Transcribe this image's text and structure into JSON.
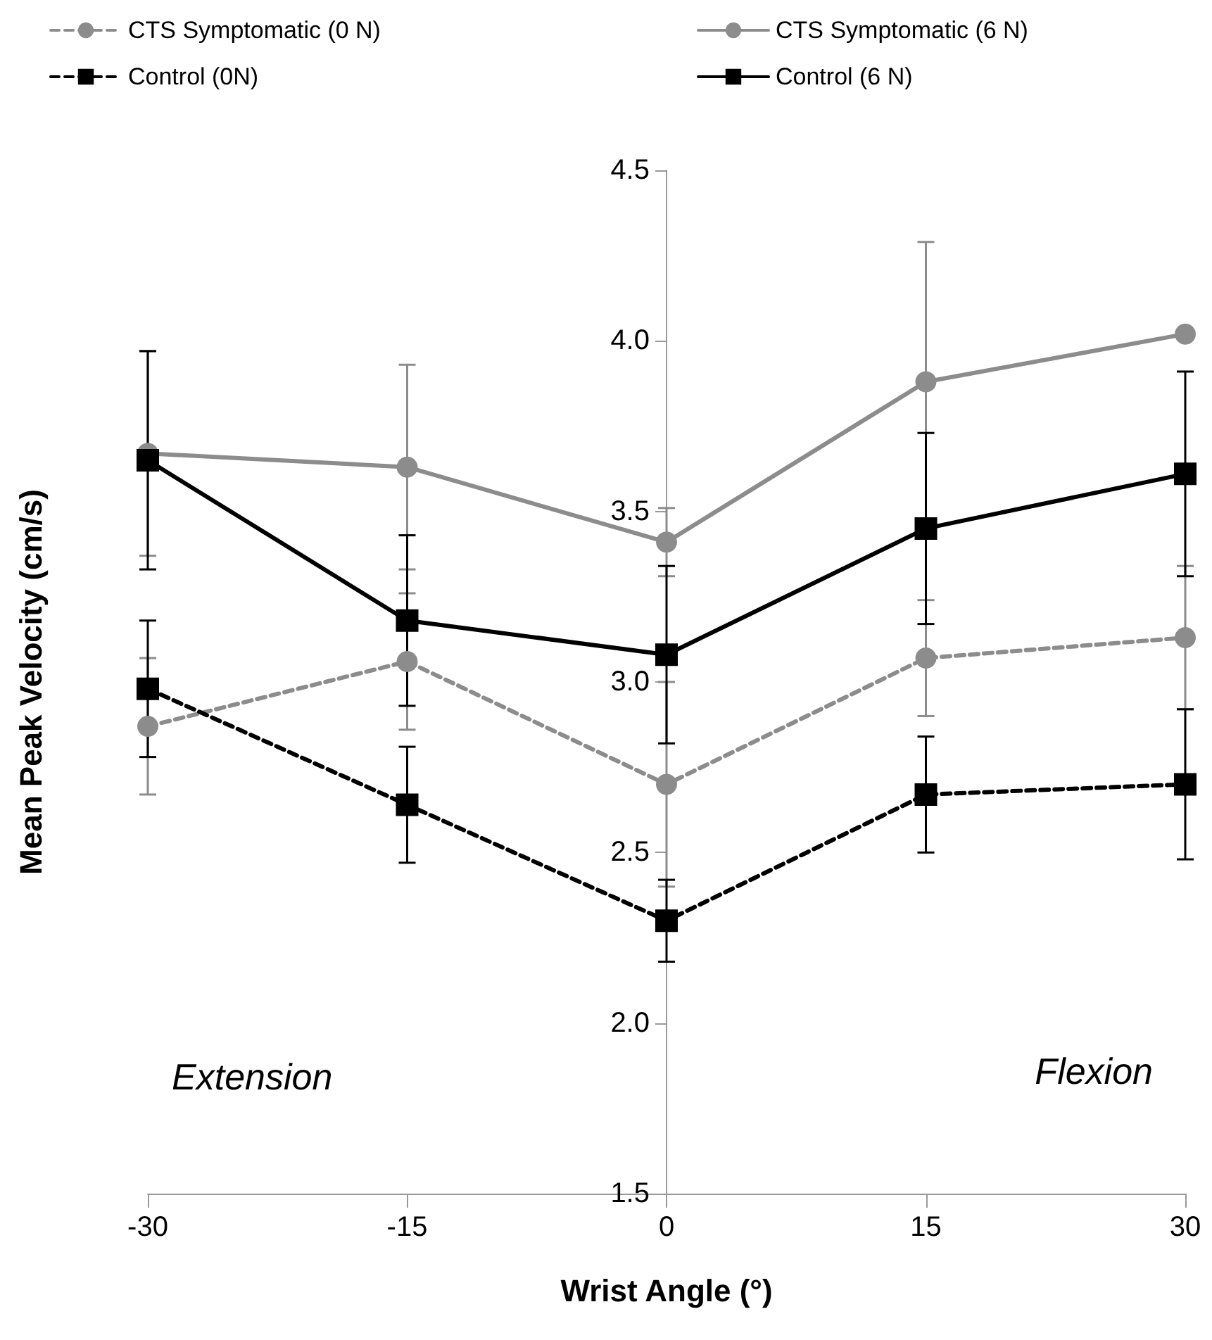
{
  "chart_data": {
    "type": "line",
    "xlabel": "Wrist Angle (°)",
    "ylabel": "Mean Peak Velocity (cm/s)",
    "x": [
      -30,
      -15,
      0,
      15,
      30
    ],
    "xlim": [
      -30,
      30
    ],
    "xticks": [
      -30,
      -15,
      0,
      15,
      30
    ],
    "ylim": [
      1.5,
      4.5
    ],
    "yticks": [
      1.5,
      {
        "value": 2,
        "label": "2.0"
      },
      2.5,
      {
        "value": 3,
        "label": "3.0"
      },
      3.5,
      {
        "value": 4,
        "label": "4.0"
      },
      4.5
    ],
    "grid": false,
    "legend": "top",
    "annotations": [
      "Extension",
      "Flexion"
    ],
    "series": [
      {
        "name": "CTS Symptomatic (0 N)",
        "color": "#8c8c8c",
        "marker": "circle",
        "line_style": "dashed",
        "values": [
          2.87,
          3.06,
          2.7,
          3.07,
          3.13
        ],
        "errors": [
          0.2,
          0.2,
          0.3,
          0.17,
          0.21
        ]
      },
      {
        "name": "CTS Symptomatic (6 N)",
        "color": "#8c8c8c",
        "marker": "circle",
        "line_style": "solid",
        "values": [
          3.67,
          3.63,
          3.41,
          3.88,
          4.02
        ],
        "errors": [
          0.3,
          0.3,
          0.1,
          0.41,
          null
        ]
      },
      {
        "name": "Control (0N)",
        "color": "#000000",
        "marker": "square",
        "line_style": "dashed",
        "values": [
          2.98,
          2.64,
          2.3,
          2.67,
          2.7
        ],
        "errors": [
          0.2,
          0.17,
          0.12,
          0.17,
          0.22
        ]
      },
      {
        "name": "Control (6 N)",
        "color": "#000000",
        "marker": "square",
        "line_style": "solid",
        "values": [
          3.65,
          3.18,
          3.08,
          3.45,
          3.61
        ],
        "errors": [
          0.32,
          0.25,
          0.26,
          0.28,
          0.3
        ]
      }
    ]
  }
}
